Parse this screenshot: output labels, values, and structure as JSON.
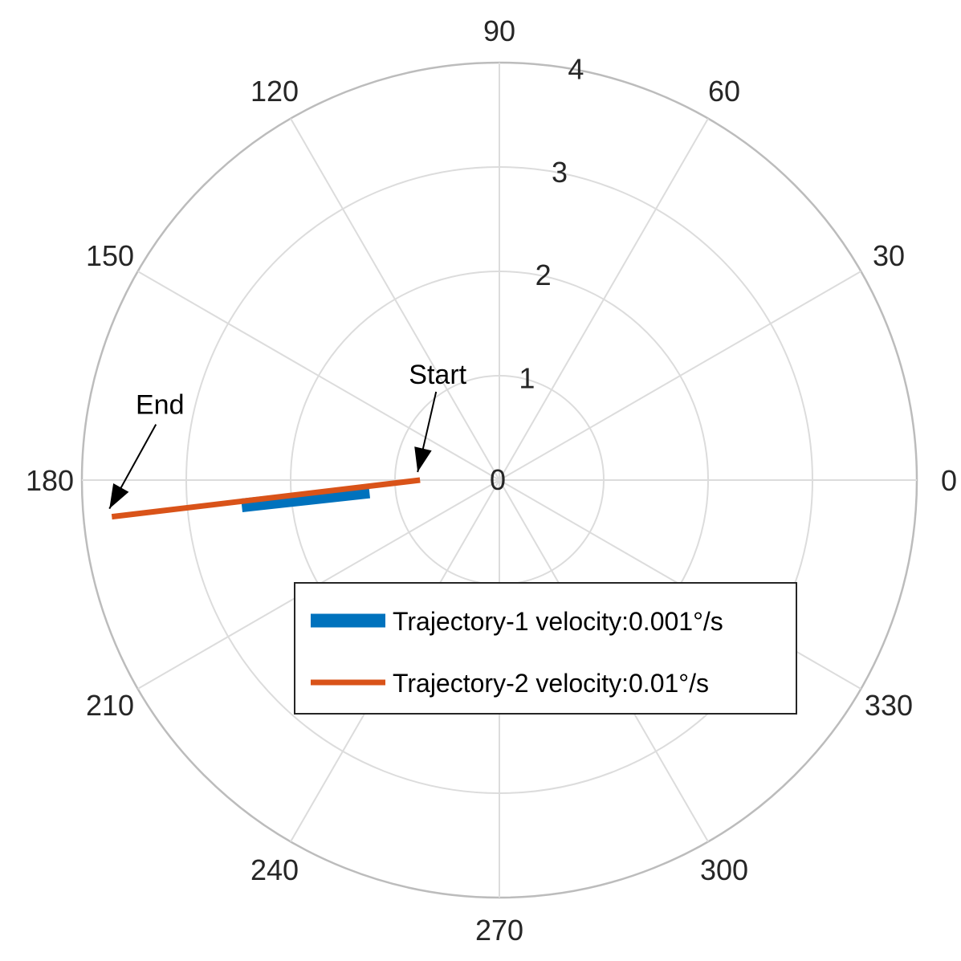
{
  "chart_data": {
    "type": "polar-line",
    "theta_unit": "degrees",
    "theta_ticks": [
      0,
      30,
      60,
      90,
      120,
      150,
      180,
      210,
      240,
      270,
      300,
      330
    ],
    "r_ticks": [
      0,
      1,
      2,
      3,
      4
    ],
    "rlim": [
      0,
      4
    ],
    "grid": true,
    "legend_position": "bottom-right",
    "series": [
      {
        "name": "Trajectory-1  velocity:0.001°/s",
        "color": "#0072BD",
        "points": [
          {
            "theta": 185.0,
            "r": 1.25
          },
          {
            "theta": 185.6,
            "r": 2.48
          }
        ]
      },
      {
        "name": "Trajectory-2  velocity:0.01°/s",
        "color": "#D95319",
        "points": [
          {
            "theta": 180.0,
            "r": 0.76
          },
          {
            "theta": 185.4,
            "r": 3.73
          }
        ]
      }
    ],
    "annotations": [
      {
        "text": "Start",
        "theta": 180.0,
        "r": 0.76
      },
      {
        "text": "End",
        "theta": 185.4,
        "r": 3.73
      }
    ]
  }
}
